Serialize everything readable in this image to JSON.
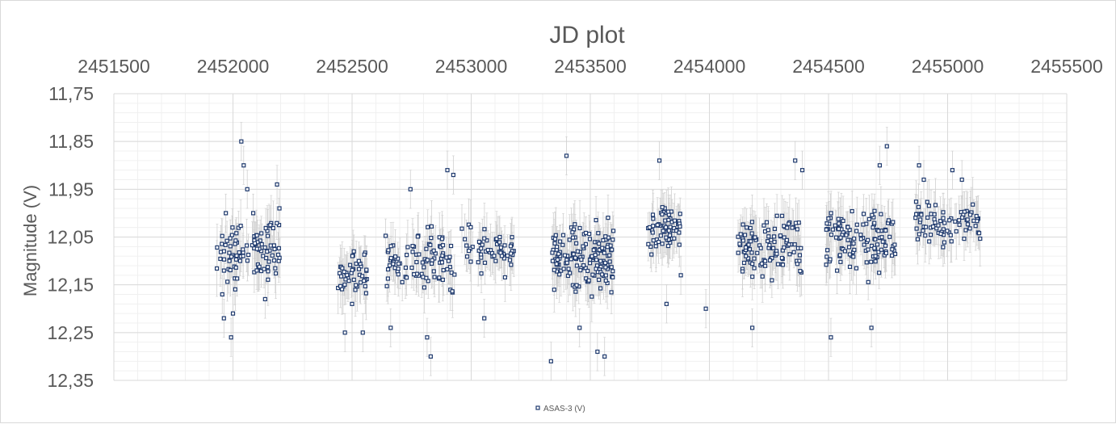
{
  "chart_data": {
    "type": "scatter",
    "title": "JD plot",
    "xlabel": "",
    "ylabel": "Magnitude (V)",
    "x_axis_position": "top",
    "y_reversed": true,
    "xlim": [
      2451500,
      2455500
    ],
    "ylim": [
      11.75,
      12.35
    ],
    "x_ticks": [
      "2451500",
      "2452000",
      "2452500",
      "2453000",
      "2453500",
      "2454000",
      "2454500",
      "2455000",
      "2455500"
    ],
    "y_ticks": [
      "11,75",
      "11,85",
      "11,95",
      "12,05",
      "12,15",
      "12,25",
      "12,35"
    ],
    "grid": true,
    "legend": "bottom-center",
    "series": [
      {
        "name": "ASAS-3 (V)",
        "marker": "open-square",
        "color": "#1f3a6e",
        "error_bar_color": "#d0d0d0",
        "seasons": [
          {
            "x_range": [
              2451930,
              2452200
            ],
            "y_center": 12.08,
            "y_spread": 0.1,
            "n": 95,
            "errors": 0.045
          },
          {
            "x_range": [
              2452440,
              2452570
            ],
            "y_center": 12.13,
            "y_spread": 0.07,
            "n": 45,
            "errors": 0.045
          },
          {
            "x_range": [
              2452640,
              2452930
            ],
            "y_center": 12.1,
            "y_spread": 0.1,
            "n": 95,
            "errors": 0.045
          },
          {
            "x_range": [
              2452960,
              2453180
            ],
            "y_center": 12.08,
            "y_spread": 0.07,
            "n": 55,
            "errors": 0.045
          },
          {
            "x_range": [
              2453340,
              2453600
            ],
            "y_center": 12.09,
            "y_spread": 0.11,
            "n": 150,
            "errors": 0.045
          },
          {
            "x_range": [
              2453740,
              2453880
            ],
            "y_center": 12.03,
            "y_spread": 0.08,
            "n": 65,
            "errors": 0.045
          },
          {
            "x_range": [
              2454120,
              2454390
            ],
            "y_center": 12.07,
            "y_spread": 0.09,
            "n": 110,
            "errors": 0.045
          },
          {
            "x_range": [
              2454490,
              2454780
            ],
            "y_center": 12.06,
            "y_spread": 0.09,
            "n": 120,
            "errors": 0.045
          },
          {
            "x_range": [
              2454860,
              2455140
            ],
            "y_center": 12.02,
            "y_spread": 0.07,
            "n": 75,
            "errors": 0.045
          }
        ],
        "points": [
          [
            2451955,
            12.17
          ],
          [
            2451962,
            12.22
          ],
          [
            2451970,
            12.0
          ],
          [
            2451985,
            12.1
          ],
          [
            2451992,
            12.26
          ],
          [
            2452000,
            12.21
          ],
          [
            2452035,
            11.85
          ],
          [
            2452045,
            11.9
          ],
          [
            2452060,
            11.95
          ],
          [
            2452085,
            12.0
          ],
          [
            2452100,
            12.12
          ],
          [
            2452135,
            12.18
          ],
          [
            2452185,
            11.94
          ],
          [
            2452195,
            11.99
          ],
          [
            2452470,
            12.25
          ],
          [
            2452500,
            12.19
          ],
          [
            2452545,
            12.25
          ],
          [
            2452662,
            12.24
          ],
          [
            2452745,
            11.95
          ],
          [
            2452815,
            12.26
          ],
          [
            2452830,
            12.3
          ],
          [
            2452900,
            11.91
          ],
          [
            2452925,
            11.92
          ],
          [
            2453055,
            12.22
          ],
          [
            2453120,
            12.05
          ],
          [
            2453335,
            12.31
          ],
          [
            2453400,
            11.88
          ],
          [
            2453455,
            12.24
          ],
          [
            2453530,
            12.29
          ],
          [
            2453560,
            12.3
          ],
          [
            2453790,
            11.89
          ],
          [
            2453820,
            12.19
          ],
          [
            2453880,
            12.13
          ],
          [
            2453985,
            12.2
          ],
          [
            2454180,
            12.24
          ],
          [
            2454360,
            11.89
          ],
          [
            2454390,
            11.91
          ],
          [
            2454510,
            12.26
          ],
          [
            2454680,
            12.24
          ],
          [
            2454715,
            11.9
          ],
          [
            2454745,
            11.86
          ],
          [
            2454880,
            11.9
          ],
          [
            2454900,
            11.93
          ],
          [
            2455020,
            11.91
          ],
          [
            2455060,
            11.93
          ]
        ]
      }
    ]
  }
}
